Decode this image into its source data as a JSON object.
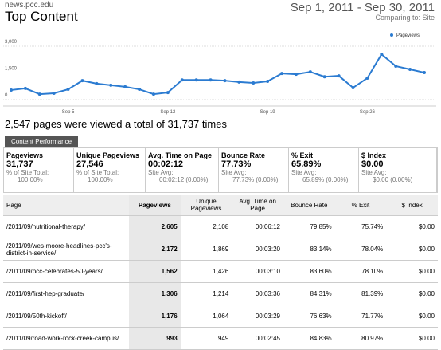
{
  "header": {
    "site": "news.pcc.edu",
    "title": "Top Content",
    "date_range": "Sep 1, 2011 - Sep 30, 2011",
    "comparing": "Comparing to: Site"
  },
  "chart_data": {
    "type": "line",
    "categories": [
      null,
      null,
      null,
      null,
      "Sep 5",
      null,
      null,
      null,
      null,
      null,
      null,
      "Sep 12",
      null,
      null,
      null,
      null,
      null,
      null,
      "Sep 19",
      null,
      null,
      null,
      null,
      null,
      null,
      "Sep 26",
      null,
      null,
      null,
      null
    ],
    "series": [
      {
        "name": "Pageviews",
        "color": "#2b7bd1",
        "values": [
          540,
          630,
          310,
          360,
          580,
          1070,
          900,
          810,
          720,
          580,
          310,
          400,
          1110,
          1110,
          1110,
          1070,
          990,
          940,
          1030,
          1470,
          1430,
          1560,
          1290,
          1340,
          670,
          1210,
          2550,
          1880,
          1700,
          1520
        ]
      }
    ],
    "ylim": [
      0,
      3000
    ],
    "yticks": [
      0,
      {
        "value": 1500,
        "label": "1,500"
      },
      {
        "value": 3000,
        "label": "3,000"
      }
    ],
    "grid": true,
    "legend": "top-right"
  },
  "summary": "2,547 pages were viewed a total of 31,737 times",
  "tab": "Content Performance",
  "metrics": [
    {
      "label": "Pageviews",
      "value": "31,737",
      "sub1": "% of Site Total:",
      "sub2": "100.00%"
    },
    {
      "label": "Unique Pageviews",
      "value": "27,546",
      "sub1": "% of Site Total:",
      "sub2": "100.00%"
    },
    {
      "label": "Avg. Time on Page",
      "value": "00:02:12",
      "sub1": "Site Avg:",
      "sub2": "00:02:12 (0.00%)"
    },
    {
      "label": "Bounce Rate",
      "value": "77.73%",
      "sub1": "Site Avg:",
      "sub2": "77.73% (0.00%)"
    },
    {
      "label": "% Exit",
      "value": "65.89%",
      "sub1": "Site Avg:",
      "sub2": "65.89% (0.00%)"
    },
    {
      "label": "$ Index",
      "value": "$0.00",
      "sub1": "Site Avg:",
      "sub2": "$0.00 (0.00%)"
    }
  ],
  "table": {
    "columns": [
      "Page",
      "Pageviews",
      "Unique Pageviews",
      "Avg. Time on Page",
      "Bounce Rate",
      "% Exit",
      "$ Index"
    ],
    "rows": [
      [
        "/2011/09/nutritional-therapy/",
        "2,605",
        "2,108",
        "00:06:12",
        "79.85%",
        "75.74%",
        "$0.00"
      ],
      [
        "/2011/09/wes-moore-headlines-pcc's-district-in-service/",
        "2,172",
        "1,869",
        "00:03:20",
        "83.14%",
        "78.04%",
        "$0.00"
      ],
      [
        "/2011/09/pcc-celebrates-50-years/",
        "1,562",
        "1,426",
        "00:03:10",
        "83.60%",
        "78.10%",
        "$0.00"
      ],
      [
        "/2011/09/first-hep-graduate/",
        "1,306",
        "1,214",
        "00:03:36",
        "84.31%",
        "81.39%",
        "$0.00"
      ],
      [
        "/2011/09/50th-kickoff/",
        "1,176",
        "1,064",
        "00:03:29",
        "76.63%",
        "71.77%",
        "$0.00"
      ],
      [
        "/2011/09/road-work-rock-creek-campus/",
        "993",
        "949",
        "00:02:45",
        "84.83%",
        "80.97%",
        "$0.00"
      ]
    ]
  }
}
